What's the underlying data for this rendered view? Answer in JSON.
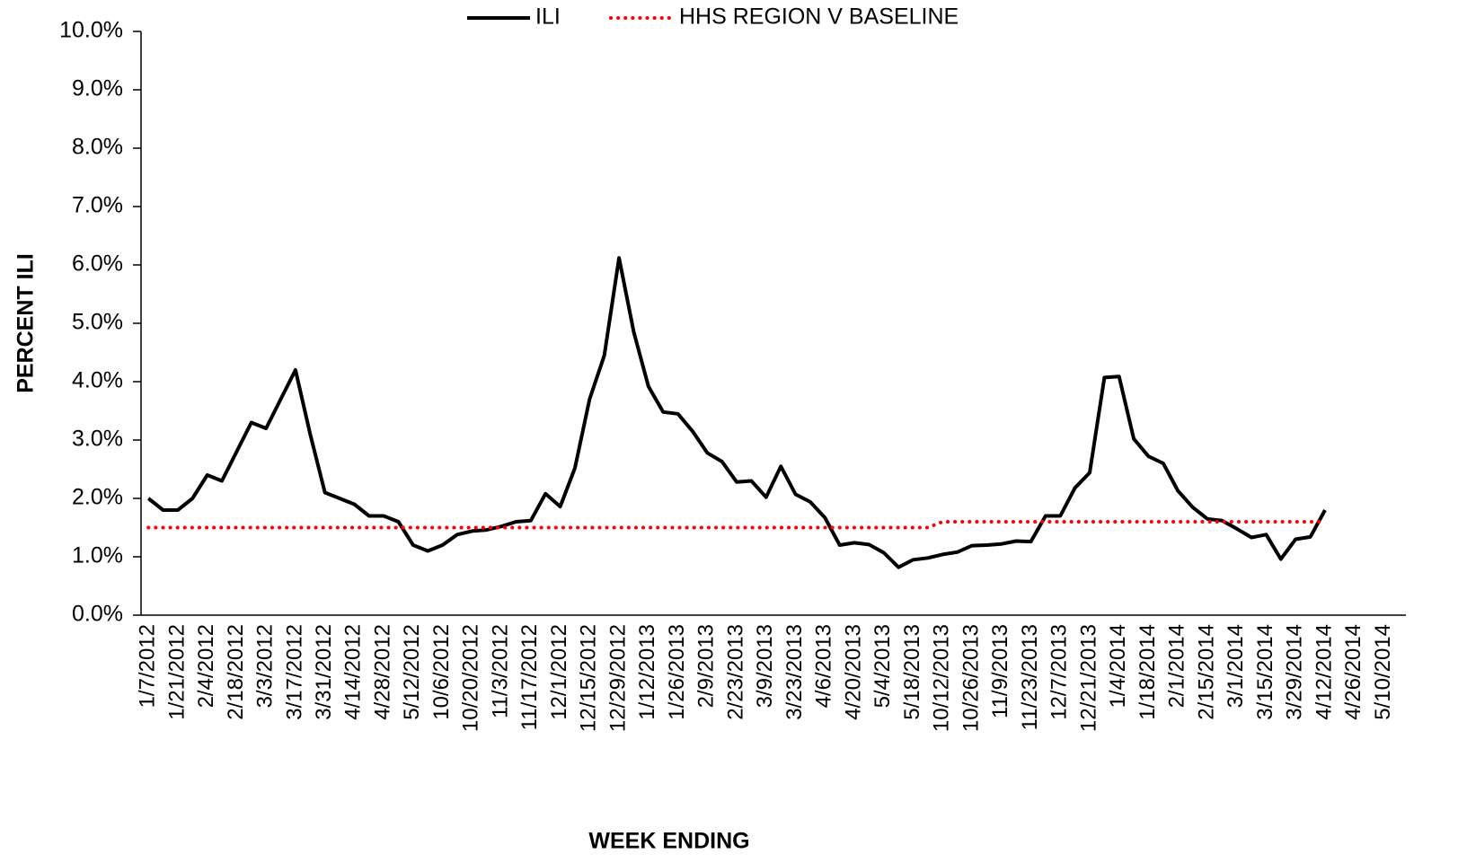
{
  "chart_data": {
    "type": "line",
    "x_label": "WEEK ENDING",
    "y_label": "PERCENT ILI",
    "categories": [
      "1/7/2012",
      null,
      "1/21/2012",
      null,
      "2/4/2012",
      null,
      "2/18/2012",
      null,
      "3/3/2012",
      null,
      "3/17/2012",
      null,
      "3/31/2012",
      null,
      "4/14/2012",
      null,
      "4/28/2012",
      null,
      "5/12/2012",
      null,
      "10/6/2012",
      null,
      "10/20/2012",
      null,
      "11/3/2012",
      null,
      "11/17/2012",
      null,
      "12/1/2012",
      null,
      "12/15/2012",
      null,
      "12/29/2012",
      null,
      "1/12/2013",
      null,
      "1/26/2013",
      null,
      "2/9/2013",
      null,
      "2/23/2013",
      null,
      "3/9/2013",
      null,
      "3/23/2013",
      null,
      "4/6/2013",
      null,
      "4/20/2013",
      null,
      "5/4/2013",
      null,
      "5/18/2013",
      null,
      "10/12/2013",
      null,
      "10/26/2013",
      null,
      "11/9/2013",
      null,
      "11/23/2013",
      null,
      "12/7/2013",
      null,
      "12/21/2013",
      null,
      "1/4/2014",
      null,
      "1/18/2014",
      null,
      "2/1/2014",
      null,
      "2/15/2014",
      null,
      "3/1/2014",
      null,
      "3/15/2014",
      null,
      "3/29/2014",
      null,
      "4/12/2014",
      null,
      "4/26/2014",
      null,
      "5/10/2014",
      null
    ],
    "series": [
      {
        "name": "ILI",
        "color": "#000000",
        "style": "solid",
        "values": [
          2.0,
          1.8,
          1.8,
          2.0,
          2.4,
          2.3,
          2.8,
          3.3,
          3.2,
          3.7,
          4.2,
          3.1,
          2.1,
          2.0,
          1.9,
          1.7,
          1.7,
          1.6,
          1.2,
          1.1,
          1.2,
          1.38,
          1.44,
          1.46,
          1.52,
          1.6,
          1.62,
          2.08,
          1.86,
          2.52,
          3.7,
          4.45,
          6.12,
          4.85,
          3.92,
          3.48,
          3.45,
          3.15,
          2.78,
          2.63,
          2.28,
          2.3,
          2.02,
          2.55,
          2.07,
          1.94,
          1.67,
          1.2,
          1.24,
          1.21,
          1.07,
          0.82,
          0.95,
          0.98,
          1.04,
          1.08,
          1.19,
          1.2,
          1.22,
          1.27,
          1.26,
          1.7,
          1.7,
          2.18,
          2.44,
          4.07,
          4.09,
          3.02,
          2.72,
          2.6,
          2.13,
          1.85,
          1.65,
          1.62,
          1.48,
          1.33,
          1.38,
          0.96,
          1.3,
          1.34,
          1.8,
          null,
          null,
          null,
          null,
          null
        ]
      },
      {
        "name": "HHS REGION V BASELINE",
        "color": "#ff0000",
        "style": "dotted",
        "values": [
          1.5,
          1.5,
          1.5,
          1.5,
          1.5,
          1.5,
          1.5,
          1.5,
          1.5,
          1.5,
          1.5,
          1.5,
          1.5,
          1.5,
          1.5,
          1.5,
          1.5,
          1.5,
          1.5,
          1.5,
          1.5,
          1.5,
          1.5,
          1.5,
          1.5,
          1.5,
          1.5,
          1.5,
          1.5,
          1.5,
          1.5,
          1.5,
          1.5,
          1.5,
          1.5,
          1.5,
          1.5,
          1.5,
          1.5,
          1.5,
          1.5,
          1.5,
          1.5,
          1.5,
          1.5,
          1.5,
          1.5,
          1.5,
          1.5,
          1.5,
          1.5,
          1.5,
          1.5,
          1.5,
          1.6,
          1.6,
          1.6,
          1.6,
          1.6,
          1.6,
          1.6,
          1.6,
          1.6,
          1.6,
          1.6,
          1.6,
          1.6,
          1.6,
          1.6,
          1.6,
          1.6,
          1.6,
          1.6,
          1.6,
          1.6,
          1.6,
          1.6,
          1.6,
          1.6,
          1.6,
          1.6,
          null,
          null,
          null,
          null,
          null
        ]
      }
    ],
    "ylim": [
      0,
      10
    ],
    "yticks": [
      {
        "value": 0,
        "label": "0.0%"
      },
      {
        "value": 1,
        "label": "1.0%"
      },
      {
        "value": 2,
        "label": "2.0%"
      },
      {
        "value": 3,
        "label": "3.0%"
      },
      {
        "value": 4,
        "label": "4.0%"
      },
      {
        "value": 5,
        "label": "5.0%"
      },
      {
        "value": 6,
        "label": "6.0%"
      },
      {
        "value": 7,
        "label": "7.0%"
      },
      {
        "value": 8,
        "label": "8.0%"
      },
      {
        "value": 9,
        "label": "9.0%"
      },
      {
        "value": 10,
        "label": "10.0%"
      }
    ],
    "grid": false,
    "legend": "top"
  }
}
